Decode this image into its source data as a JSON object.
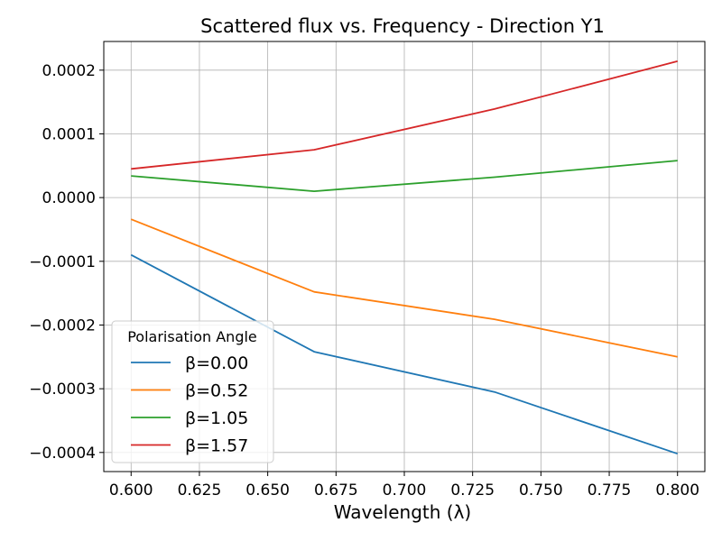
{
  "chart_data": {
    "type": "line",
    "title": "Scattered flux vs. Frequency - Direction Y1",
    "xlabel": "Wavelength (λ)",
    "ylabel": "",
    "xlim": [
      0.59,
      0.81
    ],
    "ylim": [
      -0.00043,
      0.000245
    ],
    "grid": true,
    "legend_title": "Polarisation Angle",
    "legend_position": "lower-left",
    "x": [
      0.6,
      0.667,
      0.733,
      0.8
    ],
    "xticks": [
      0.6,
      0.625,
      0.65,
      0.675,
      0.7,
      0.725,
      0.75,
      0.775,
      0.8
    ],
    "xtick_labels": [
      "0.600",
      "0.625",
      "0.650",
      "0.675",
      "0.700",
      "0.725",
      "0.750",
      "0.775",
      "0.800"
    ],
    "yticks": [
      -0.0004,
      -0.0003,
      -0.0002,
      -0.0001,
      0.0,
      0.0001,
      0.0002
    ],
    "ytick_labels": [
      "−0.0004",
      "−0.0003",
      "−0.0002",
      "−0.0001",
      "0.0000",
      "0.0001",
      "0.0002"
    ],
    "series": [
      {
        "name": "β=0.00",
        "color": "#1f77b4",
        "values": [
          -9e-05,
          -0.000242,
          -0.000305,
          -0.000402
        ]
      },
      {
        "name": "β=0.52",
        "color": "#ff7f0e",
        "values": [
          -3.4e-05,
          -0.000148,
          -0.000191,
          -0.00025
        ]
      },
      {
        "name": "β=1.05",
        "color": "#2ca02c",
        "values": [
          3.4e-05,
          1e-05,
          3.2e-05,
          5.8e-05
        ]
      },
      {
        "name": "β=1.57",
        "color": "#d62728",
        "values": [
          4.5e-05,
          7.5e-05,
          0.000139,
          0.000214
        ]
      }
    ]
  }
}
